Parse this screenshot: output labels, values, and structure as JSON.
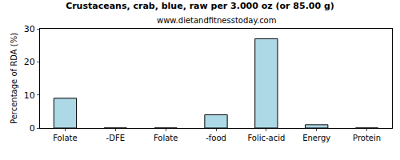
{
  "chart_data": {
    "type": "bar",
    "title": "Crustaceans, crab, blue, raw per 3.000 oz (or 85.00 g)",
    "subtitle": "www.dietandfitnesstoday.com",
    "y_label": "Percentage of RDA (%)",
    "categories": [
      "Folate",
      "-DFE",
      "Folate",
      "-food",
      "Folic-acid",
      "Energy",
      "Protein"
    ],
    "values": [
      9,
      0,
      0,
      4,
      27,
      1,
      0
    ],
    "color": "#add8e6",
    "ylim": [
      0,
      30
    ],
    "yticks": [
      0,
      10,
      20,
      30
    ],
    "grid": false
  }
}
